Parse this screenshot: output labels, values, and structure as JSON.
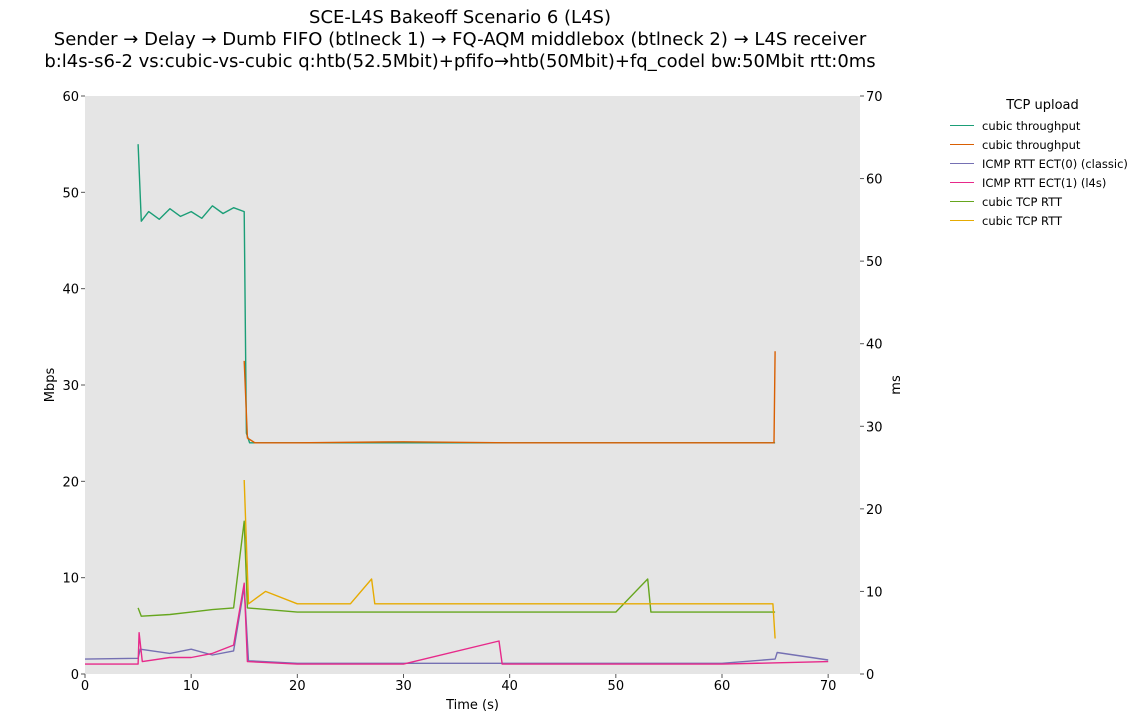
{
  "chart_data": {
    "type": "line",
    "title": [
      "SCE-L4S Bakeoff Scenario 6 (L4S)",
      "Sender → Delay → Dumb FIFO (btlneck 1) → FQ-AQM middlebox (btlneck 2) → L4S receiver",
      "b:l4s-s6-2 vs:cubic-vs-cubic q:htb(52.5Mbit)+pfifo→htb(50Mbit)+fq_codel bw:50Mbit rtt:0ms"
    ],
    "xlabel": "Time (s)",
    "ylabel_left": "Mbps",
    "ylabel_right": "ms",
    "xlim": [
      0,
      73
    ],
    "ylim_left": [
      0,
      60
    ],
    "ylim_right": [
      0,
      70
    ],
    "x_ticks": [
      0,
      10,
      20,
      30,
      40,
      50,
      60,
      70
    ],
    "y_ticks_left": [
      0,
      10,
      20,
      30,
      40,
      50,
      60
    ],
    "y_ticks_right": [
      0,
      10,
      20,
      30,
      40,
      50,
      60,
      70
    ],
    "grid": false,
    "plot_background": "#e5e5e5",
    "legend": {
      "title": "TCP upload",
      "placement": "outside-right-top"
    },
    "series": [
      {
        "name": "cubic throughput",
        "axis": "left",
        "color": "#1b9e77",
        "points": [
          [
            5.0,
            55.0
          ],
          [
            5.3,
            47.0
          ],
          [
            6,
            48.0
          ],
          [
            7,
            47.2
          ],
          [
            8,
            48.3
          ],
          [
            9,
            47.5
          ],
          [
            10,
            48.0
          ],
          [
            11,
            47.3
          ],
          [
            12,
            48.6
          ],
          [
            13,
            47.8
          ],
          [
            14,
            48.4
          ],
          [
            15.0,
            48.0
          ],
          [
            15.2,
            25.0
          ],
          [
            15.5,
            24.0
          ],
          [
            20,
            24.0
          ],
          [
            30,
            24.0
          ],
          [
            40,
            24.0
          ],
          [
            50,
            24.0
          ],
          [
            60,
            24.0
          ],
          [
            65.0,
            24.0
          ]
        ]
      },
      {
        "name": "cubic throughput",
        "axis": "left",
        "color": "#d95f02",
        "points": [
          [
            15.0,
            32.5
          ],
          [
            15.3,
            24.5
          ],
          [
            16,
            24.0
          ],
          [
            20,
            24.0
          ],
          [
            30,
            24.1
          ],
          [
            40,
            24.0
          ],
          [
            50,
            24.0
          ],
          [
            60,
            24.0
          ],
          [
            64.9,
            24.0
          ],
          [
            65.0,
            33.5
          ]
        ]
      },
      {
        "name": "ICMP RTT ECT(0) (classic)",
        "axis": "right",
        "color": "#7570b3",
        "points": [
          [
            0,
            1.8
          ],
          [
            5,
            1.9
          ],
          [
            5.2,
            3.0
          ],
          [
            8,
            2.5
          ],
          [
            10,
            3.0
          ],
          [
            12,
            2.3
          ],
          [
            14,
            2.8
          ],
          [
            15.0,
            10.5
          ],
          [
            15.4,
            1.6
          ],
          [
            20,
            1.3
          ],
          [
            30,
            1.3
          ],
          [
            40,
            1.3
          ],
          [
            50,
            1.3
          ],
          [
            60,
            1.3
          ],
          [
            65,
            1.8
          ],
          [
            65.2,
            2.6
          ],
          [
            70,
            1.7
          ]
        ]
      },
      {
        "name": "ICMP RTT ECT(1) (l4s)",
        "axis": "right",
        "color": "#e7298a",
        "points": [
          [
            0,
            1.2
          ],
          [
            5,
            1.2
          ],
          [
            5.1,
            5.0
          ],
          [
            5.4,
            1.5
          ],
          [
            8,
            2.0
          ],
          [
            10,
            2.0
          ],
          [
            12,
            2.5
          ],
          [
            14,
            3.5
          ],
          [
            15.0,
            11.0
          ],
          [
            15.3,
            1.5
          ],
          [
            20,
            1.2
          ],
          [
            30,
            1.2
          ],
          [
            39,
            4.0
          ],
          [
            39.3,
            1.2
          ],
          [
            50,
            1.2
          ],
          [
            60,
            1.2
          ],
          [
            70,
            1.5
          ]
        ]
      },
      {
        "name": "cubic TCP RTT",
        "axis": "right",
        "color": "#66a61e",
        "points": [
          [
            5.0,
            8.0
          ],
          [
            5.3,
            7.0
          ],
          [
            8,
            7.2
          ],
          [
            10,
            7.5
          ],
          [
            12,
            7.8
          ],
          [
            14,
            8.0
          ],
          [
            15.0,
            18.5
          ],
          [
            15.3,
            8.0
          ],
          [
            20,
            7.5
          ],
          [
            30,
            7.5
          ],
          [
            40,
            7.5
          ],
          [
            50,
            7.5
          ],
          [
            53,
            11.5
          ],
          [
            53.3,
            7.5
          ],
          [
            60,
            7.5
          ],
          [
            65.0,
            7.5
          ]
        ]
      },
      {
        "name": "cubic TCP RTT",
        "axis": "right",
        "color": "#e6ab02",
        "points": [
          [
            15.0,
            23.5
          ],
          [
            15.4,
            8.5
          ],
          [
            17,
            10.0
          ],
          [
            20,
            8.5
          ],
          [
            25,
            8.5
          ],
          [
            27,
            11.5
          ],
          [
            27.3,
            8.5
          ],
          [
            30,
            8.5
          ],
          [
            40,
            8.5
          ],
          [
            50,
            8.5
          ],
          [
            60,
            8.5
          ],
          [
            64.8,
            8.5
          ],
          [
            65.0,
            4.3
          ]
        ]
      }
    ]
  }
}
